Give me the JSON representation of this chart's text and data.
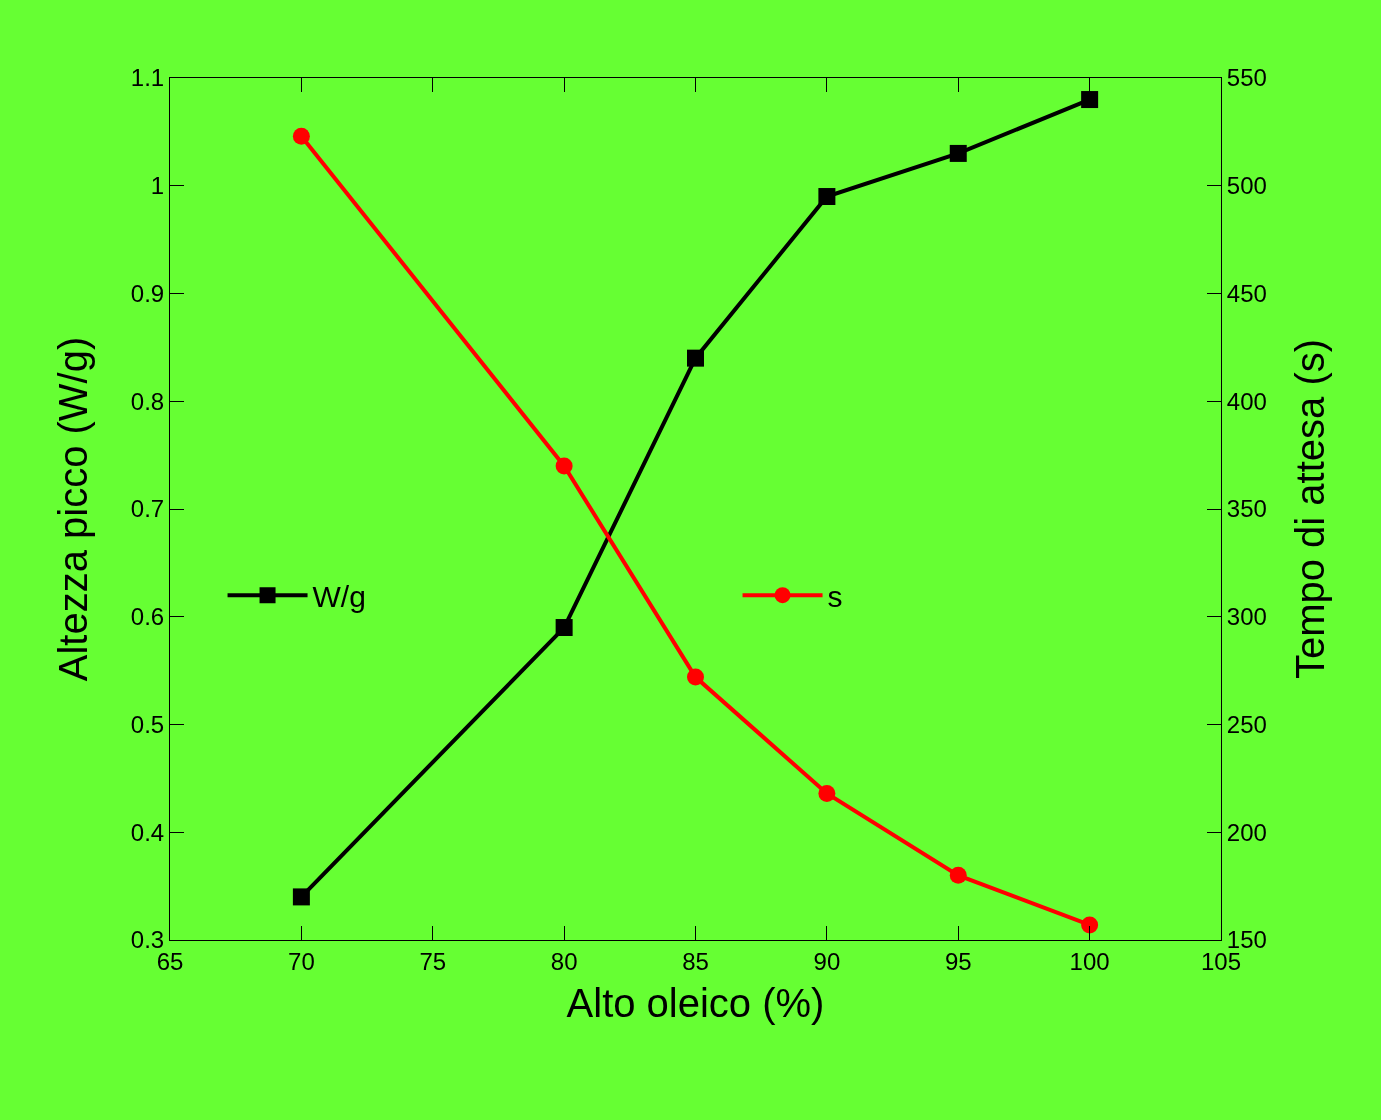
{
  "chart_data": {
    "type": "line",
    "xlabel": "Alto oleico (%)",
    "ylabel": "Altezza picco (W/g)",
    "y2label": "Tempo di attesa (s)",
    "x": [
      70,
      80,
      85,
      90,
      95,
      100
    ],
    "series": [
      {
        "name": "W/g",
        "color": "#000000",
        "marker": "square",
        "values": [
          0.34,
          0.59,
          0.84,
          0.99,
          1.03,
          1.08
        ]
      },
      {
        "name": "s",
        "color": "#ff0000",
        "marker": "circle",
        "axis": "y2",
        "values": [
          523,
          370,
          272,
          218,
          180,
          157
        ]
      }
    ],
    "xlim": [
      65,
      105
    ],
    "xticks": [
      65,
      70,
      75,
      80,
      85,
      90,
      95,
      100,
      105
    ],
    "ylim": [
      0.3,
      1.1
    ],
    "yticks": [
      0.3,
      0.4,
      0.5,
      0.6,
      0.7,
      0.8,
      0.9,
      1,
      1.1
    ],
    "y2lim": [
      150,
      550
    ],
    "y2ticks": [
      150,
      200,
      250,
      300,
      350,
      400,
      450,
      500,
      550
    ],
    "grid": false,
    "legend": "left",
    "line_style": "solid"
  }
}
